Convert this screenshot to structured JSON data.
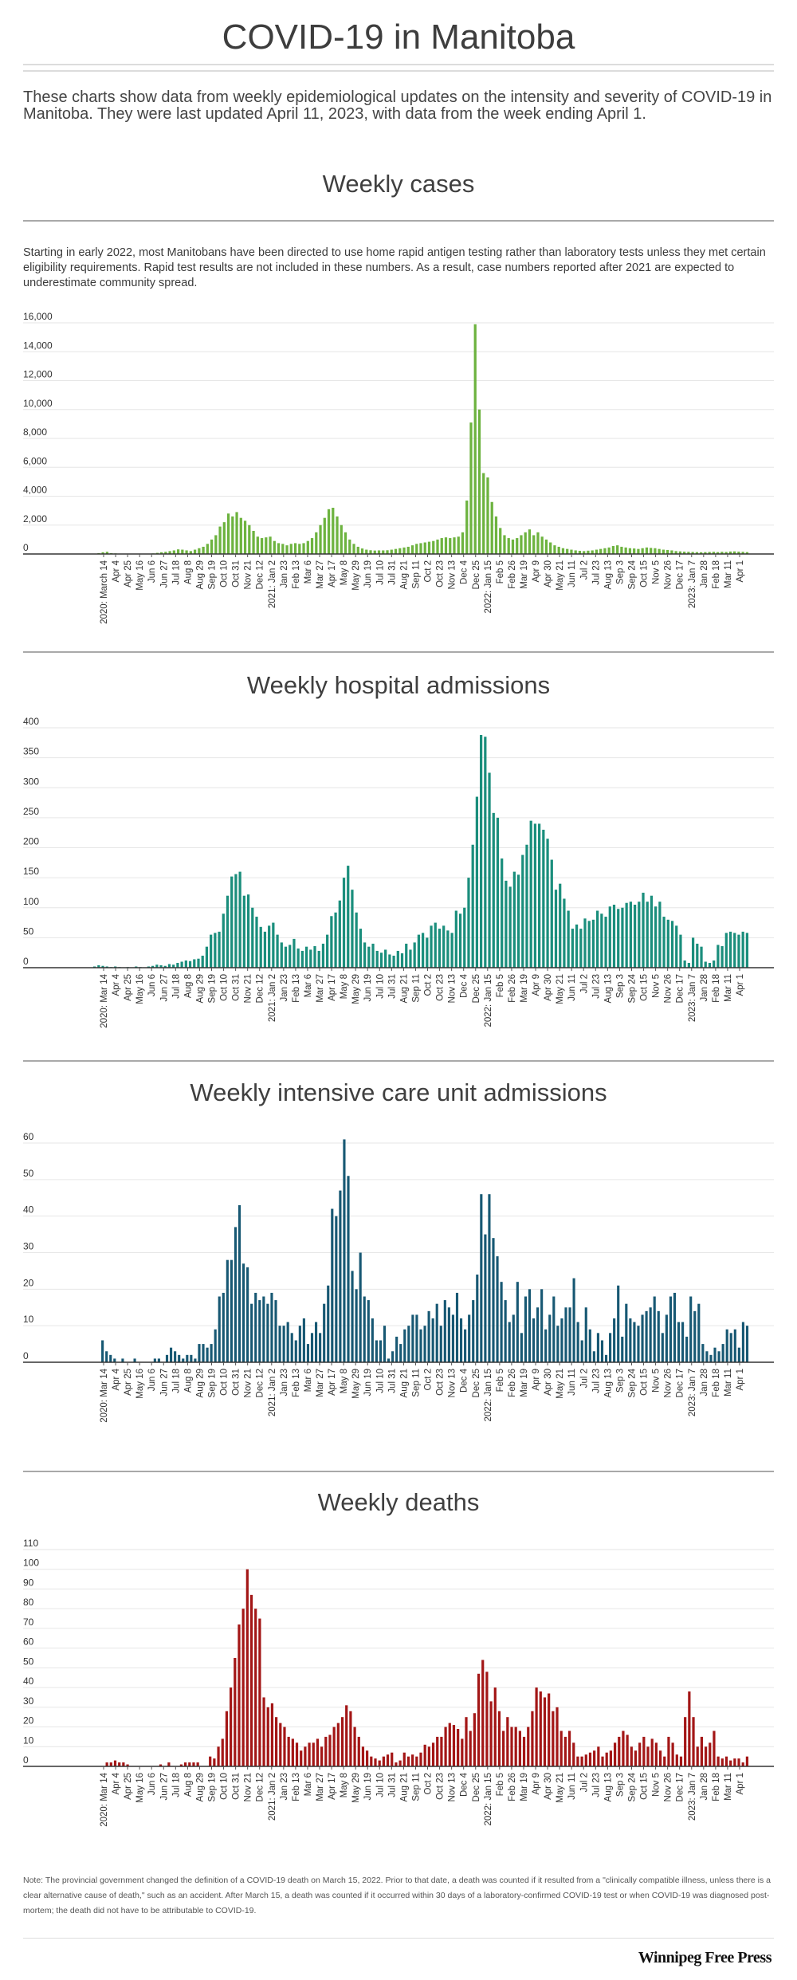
{
  "title": "COVID-19 in Manitoba",
  "intro": "These charts show data from weekly epidemiological updates on the intensity and severity of COVID-19 in Manitoba. They were last updated April 11, 2023, with data from the week ending April 1.",
  "cases_note": "Starting in early 2022, most Manitobans have been directed to use home rapid antigen testing rather than laboratory tests unless they met certain eligibility requirements. Rapid test results are not included in these numbers. As a result, case numbers reported after 2021 are expected to underestimate community spread.",
  "footnote": "Note: The provincial government changed the definition of a COVID-19 death on March 15, 2022.  Prior to that date, a death was counted if it resulted from a \"clinically compatible illness, unless there is a clear alternative cause of death,\" such as an accident.  After March 15, a death was counted if it occurred within 30 days of a laboratory-confirmed COVID-19 test or when COVID-19 was diagnosed post-mortem; the death did not have to be attributable to COVID-19.",
  "logo": "Winnipeg Free Press",
  "chart_data": [
    {
      "type": "bar",
      "title": "Weekly cases",
      "color": "#6db33f",
      "ylim": [
        0,
        16000
      ],
      "yticks": [
        "0",
        "2,000",
        "4,000",
        "6,000",
        "8,000",
        "10,000",
        "12,000",
        "14,000",
        "16,000"
      ],
      "grid": true,
      "xlabels": [
        "2020: March 14",
        "Apr 4",
        "Apr 25",
        "May 16",
        "Jun 6",
        "Jun 27",
        "Jul 18",
        "Aug 8",
        "Aug 29",
        "Sep 19",
        "Oct 10",
        "Oct 31",
        "Nov 21",
        "Dec 12",
        "2021: Jan 2",
        "Jan 23",
        "Feb 13",
        "Mar 6",
        "Mar 27",
        "Apr 17",
        "May 8",
        "May 29",
        "Jun 19",
        "Jul 10",
        "Jul 31",
        "Aug 21",
        "Sep 11",
        "Oct 2",
        "Oct 23",
        "Nov 13",
        "Dec 4",
        "Dec 25",
        "2022: Jan 15",
        "Feb 5",
        "Feb 26",
        "Mar 19",
        "Apr 9",
        "Apr 30",
        "May 21",
        "Jun 11",
        "Jul 2",
        "Jul 23",
        "Aug 13",
        "Sep 3",
        "Sep 24",
        "Oct 15",
        "Nov 5",
        "Nov 26",
        "Dec 17",
        "2023: Jan 7",
        "Jan 28",
        "Feb 18",
        "Mar 11",
        "Apr 1"
      ],
      "values": [
        20,
        60,
        120,
        150,
        60,
        40,
        20,
        10,
        8,
        6,
        5,
        5,
        10,
        20,
        40,
        80,
        120,
        150,
        200,
        250,
        320,
        300,
        250,
        200,
        300,
        400,
        500,
        700,
        1000,
        1300,
        1900,
        2200,
        2800,
        2600,
        2900,
        2500,
        2300,
        2000,
        1600,
        1200,
        1100,
        1150,
        1200,
        900,
        750,
        700,
        600,
        700,
        750,
        700,
        750,
        900,
        1100,
        1500,
        2000,
        2500,
        3100,
        3200,
        2600,
        2000,
        1500,
        1000,
        700,
        500,
        380,
        300,
        260,
        240,
        250,
        250,
        260,
        300,
        350,
        400,
        450,
        500,
        600,
        700,
        750,
        800,
        850,
        900,
        1000,
        1100,
        1150,
        1100,
        1150,
        1200,
        1500,
        3700,
        9100,
        15900,
        10000,
        5600,
        5300,
        3600,
        2600,
        1800,
        1300,
        1100,
        1000,
        1100,
        1300,
        1500,
        1700,
        1300,
        1500,
        1200,
        1000,
        800,
        600,
        500,
        400,
        350,
        300,
        250,
        220,
        200,
        230,
        250,
        300,
        350,
        400,
        450,
        550,
        600,
        500,
        450,
        400,
        380,
        350,
        400,
        450,
        420,
        400,
        350,
        300,
        280,
        250,
        200,
        180,
        160,
        150,
        140,
        130,
        120,
        130,
        140,
        150,
        130,
        150,
        140,
        170,
        180,
        160,
        150,
        130
      ]
    },
    {
      "type": "bar",
      "title": "Weekly hospital admissions",
      "color": "#1a8e7c",
      "ylim": [
        0,
        400
      ],
      "yticks": [
        "0",
        "50",
        "100",
        "150",
        "200",
        "250",
        "300",
        "350",
        "400"
      ],
      "grid": true,
      "xlabels": [
        "2020: Mar 14",
        "Apr 4",
        "Apr 25",
        "May 16",
        "Jun 6",
        "Jun 27",
        "Jul 18",
        "Aug 8",
        "Aug 29",
        "Sep 19",
        "Oct 10",
        "Oct 31",
        "Nov 21",
        "Dec 12",
        "2021: Jan 2",
        "Jan 23",
        "Feb 13",
        "Mar 6",
        "Mar 27",
        "Apr 17",
        "May 8",
        "May 29",
        "Jun 19",
        "Jul 10",
        "Jul 31",
        "Aug 21",
        "Sep 11",
        "Oct 2",
        "Oct 23",
        "Nov 13",
        "Dec 4",
        "Dec 25",
        "2022: Jan 15",
        "Feb 5",
        "Feb 26",
        "Mar 19",
        "Apr 9",
        "Apr 30",
        "May 21",
        "Jun 11",
        "Jul 2",
        "Jul 23",
        "Aug 13",
        "Sep 3",
        "Sep 24",
        "Oct 15",
        "Nov 5",
        "Nov 26",
        "Dec 17",
        "2023: Jan 7",
        "Jan 28",
        "Feb 18",
        "Mar 11",
        "Apr 1"
      ],
      "values": [
        2,
        4,
        3,
        2,
        1,
        2,
        1,
        0,
        1,
        0,
        2,
        1,
        0,
        2,
        3,
        5,
        4,
        3,
        6,
        5,
        8,
        10,
        12,
        11,
        14,
        15,
        20,
        35,
        55,
        58,
        60,
        90,
        120,
        152,
        156,
        160,
        120,
        122,
        100,
        85,
        68,
        60,
        70,
        75,
        55,
        42,
        35,
        38,
        48,
        32,
        28,
        35,
        30,
        36,
        28,
        40,
        55,
        86,
        92,
        112,
        150,
        170,
        130,
        92,
        65,
        42,
        35,
        40,
        28,
        25,
        30,
        22,
        20,
        28,
        24,
        40,
        30,
        42,
        55,
        58,
        50,
        70,
        75,
        65,
        70,
        62,
        58,
        95,
        90,
        100,
        150,
        205,
        285,
        388,
        385,
        325,
        258,
        250,
        182,
        145,
        135,
        160,
        155,
        188,
        205,
        245,
        240,
        240,
        230,
        215,
        180,
        130,
        140,
        115,
        95,
        65,
        72,
        65,
        82,
        78,
        80,
        95,
        90,
        85,
        102,
        105,
        98,
        100,
        108,
        110,
        105,
        110,
        125,
        110,
        120,
        102,
        110,
        85,
        80,
        78,
        70,
        55,
        12,
        8,
        50,
        40,
        35,
        10,
        8,
        12,
        38,
        36,
        58,
        60,
        58,
        55,
        60,
        58
      ]
    },
    {
      "type": "bar",
      "title": "Weekly intensive care unit admissions",
      "color": "#175873",
      "ylim": [
        0,
        60
      ],
      "yticks": [
        "0",
        "10",
        "20",
        "30",
        "40",
        "50",
        "60"
      ],
      "grid": true,
      "xlabels": [
        "2020: Mar 14",
        "Apr 4",
        "Apr 25",
        "May 16",
        "Jun 6",
        "Jun 27",
        "Jul 18",
        "Aug 8",
        "Aug 29",
        "Sep 19",
        "Oct 10",
        "Oct 31",
        "Nov 21",
        "Dec 12",
        "2021: Jan 2",
        "Jan 23",
        "Feb 13",
        "Mar 6",
        "Mar 27",
        "Apr 17",
        "May 8",
        "May 29",
        "Jun 19",
        "Jul 10",
        "Jul 31",
        "Aug 21",
        "Sep 11",
        "Oct 2",
        "Oct 23",
        "Nov 13",
        "Dec 4",
        "Dec 25",
        "2022: Jan 15",
        "Feb 5",
        "Feb 26",
        "Mar 19",
        "Apr 9",
        "Apr 30",
        "May 21",
        "Jun 11",
        "Jul 2",
        "Jul 23",
        "Aug 13",
        "Sep 3",
        "Sep 24",
        "Oct 15",
        "Nov 5",
        "Nov 26",
        "Dec 17",
        "2023: Jan 7",
        "Jan 28",
        "Feb 18",
        "Mar 11",
        "Apr 1"
      ],
      "values": [
        0,
        0,
        6,
        3,
        2,
        1,
        0,
        1,
        0,
        0,
        1,
        0,
        0,
        0,
        0,
        1,
        1,
        0,
        2,
        4,
        3,
        2,
        1,
        2,
        2,
        1,
        5,
        5,
        4,
        5,
        9,
        18,
        19,
        28,
        28,
        37,
        43,
        27,
        26,
        16,
        19,
        17,
        18,
        16,
        19,
        17,
        10,
        10,
        11,
        8,
        6,
        10,
        12,
        5,
        8,
        11,
        8,
        16,
        21,
        42,
        40,
        47,
        61,
        51,
        25,
        20,
        30,
        18,
        17,
        12,
        6,
        6,
        10,
        1,
        3,
        7,
        5,
        9,
        10,
        13,
        13,
        9,
        10,
        14,
        12,
        16,
        10,
        17,
        15,
        13,
        19,
        12,
        9,
        13,
        17,
        24,
        46,
        35,
        46,
        34,
        29,
        22,
        17,
        11,
        13,
        22,
        8,
        18,
        20,
        12,
        15,
        20,
        9,
        13,
        18,
        10,
        12,
        15,
        15,
        23,
        11,
        6,
        15,
        9,
        3,
        8,
        6,
        2,
        8,
        12,
        21,
        7,
        16,
        12,
        11,
        10,
        13,
        14,
        15,
        18,
        14,
        8,
        13,
        18,
        19,
        11,
        11,
        7,
        18,
        14,
        16,
        5,
        3,
        2,
        4,
        3,
        5,
        9,
        8,
        9,
        4,
        11,
        10
      ]
    },
    {
      "type": "bar",
      "title": "Weekly deaths",
      "color": "#a31616",
      "ylim": [
        0,
        110
      ],
      "yticks": [
        "0",
        "10",
        "20",
        "30",
        "40",
        "50",
        "60",
        "70",
        "80",
        "90",
        "100",
        "110"
      ],
      "grid": true,
      "xlabels": [
        "2020: Mar 14",
        "Apr 4",
        "Apr 25",
        "May 16",
        "Jun 6",
        "Jun 27",
        "Jul 18",
        "Aug 8",
        "Aug 29",
        "Sep 19",
        "Oct 10",
        "Oct 31",
        "Nov 21",
        "Dec 12",
        "2021: Jan 2",
        "Jan 23",
        "Feb 13",
        "Mar 6",
        "Mar 27",
        "Apr 17",
        "May 8",
        "May 29",
        "Jun 19",
        "Jul 10",
        "Jul 31",
        "Aug 21",
        "Sep 11",
        "Oct 2",
        "Oct 23",
        "Nov 13",
        "Dec 4",
        "Dec 25",
        "2022: Jan 15",
        "Feb 5",
        "Feb 26",
        "Mar 19",
        "Apr 9",
        "Apr 30",
        "May 21",
        "Jun 11",
        "Jul 2",
        "Jul 23",
        "Aug 13",
        "Sep 3",
        "Sep 24",
        "Oct 15",
        "Nov 5",
        "Nov 26",
        "Dec 17",
        "2023: Jan 7",
        "Jan 28",
        "Feb 18",
        "Mar 11",
        "Apr 1"
      ],
      "values": [
        0,
        0,
        0,
        2,
        2,
        3,
        2,
        2,
        1,
        0,
        0,
        0,
        0,
        0,
        0,
        0,
        1,
        0,
        2,
        0,
        0,
        1,
        2,
        2,
        2,
        2,
        0,
        0,
        5,
        4,
        10,
        14,
        28,
        40,
        55,
        72,
        80,
        100,
        87,
        80,
        75,
        35,
        30,
        32,
        25,
        22,
        20,
        15,
        14,
        12,
        8,
        10,
        12,
        12,
        14,
        10,
        15,
        16,
        20,
        22,
        25,
        31,
        28,
        20,
        15,
        10,
        8,
        5,
        4,
        3,
        5,
        6,
        7,
        2,
        3,
        7,
        5,
        6,
        5,
        7,
        11,
        10,
        12,
        15,
        15,
        20,
        22,
        21,
        19,
        14,
        25,
        18,
        27,
        47,
        54,
        48,
        33,
        40,
        28,
        18,
        25,
        20,
        20,
        18,
        15,
        20,
        28,
        40,
        38,
        35,
        37,
        28,
        30,
        18,
        15,
        18,
        12,
        5,
        5,
        6,
        7,
        8,
        10,
        5,
        7,
        8,
        12,
        15,
        18,
        16,
        10,
        8,
        12,
        15,
        10,
        14,
        12,
        8,
        5,
        15,
        12,
        6,
        5,
        25,
        38,
        25,
        10,
        15,
        10,
        12,
        18,
        5,
        4,
        5,
        3,
        4,
        4,
        2,
        5
      ]
    }
  ]
}
